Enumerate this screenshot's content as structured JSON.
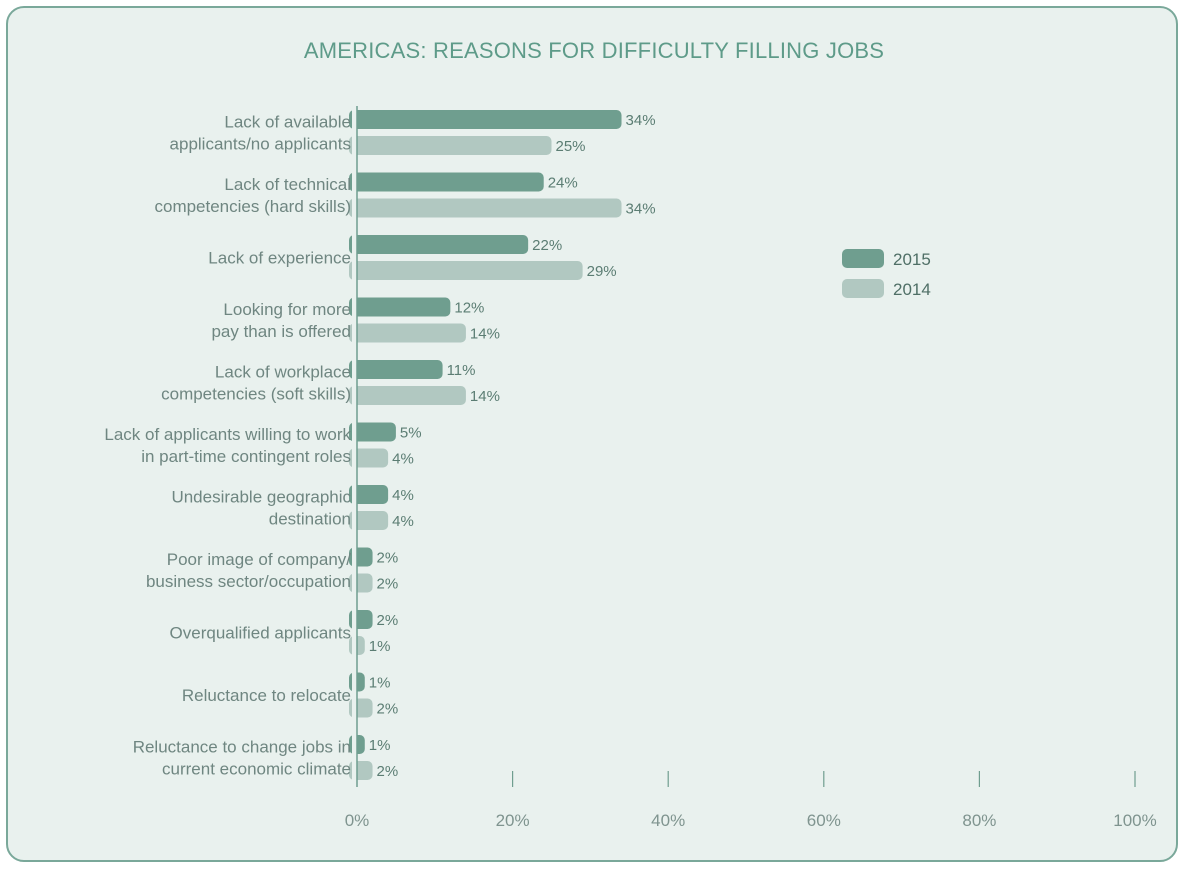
{
  "title": "AMERICAS: REASONS FOR DIFFICULTY FILLING JOBS",
  "chart_data": {
    "type": "bar",
    "orientation": "horizontal",
    "title": "AMERICAS: REASONS FOR DIFFICULTY FILLING JOBS",
    "categories": [
      [
        "Lack of available",
        "applicants/no applicants"
      ],
      [
        "Lack of technical",
        "competencies (hard skills)"
      ],
      [
        "Lack of experience"
      ],
      [
        "Looking for more",
        "pay than is offered"
      ],
      [
        "Lack of workplace",
        "competencies (soft skills)"
      ],
      [
        "Lack of applicants willing to work",
        "in part-time contingent roles"
      ],
      [
        "Undesirable geographic",
        "destination"
      ],
      [
        "Poor image of company/",
        "business sector/occupation"
      ],
      [
        "Overqualified applicants"
      ],
      [
        "Reluctance to relocate"
      ],
      [
        "Reluctance to change jobs in",
        "current economic climate"
      ]
    ],
    "series": [
      {
        "name": "2015",
        "color": "#6f9e8f",
        "values": [
          34,
          24,
          22,
          12,
          11,
          5,
          4,
          2,
          2,
          1,
          1
        ]
      },
      {
        "name": "2014",
        "color": "#b1c8c1",
        "values": [
          25,
          34,
          29,
          14,
          14,
          4,
          4,
          2,
          1,
          2,
          2
        ]
      }
    ],
    "value_suffix": "%",
    "xlim": [
      0,
      100
    ],
    "xticks": [
      0,
      20,
      40,
      60,
      80,
      100
    ],
    "xtick_labels": [
      "0%",
      "20%",
      "40%",
      "60%",
      "80%",
      "100%"
    ],
    "legend_position": "right",
    "grid": false
  }
}
